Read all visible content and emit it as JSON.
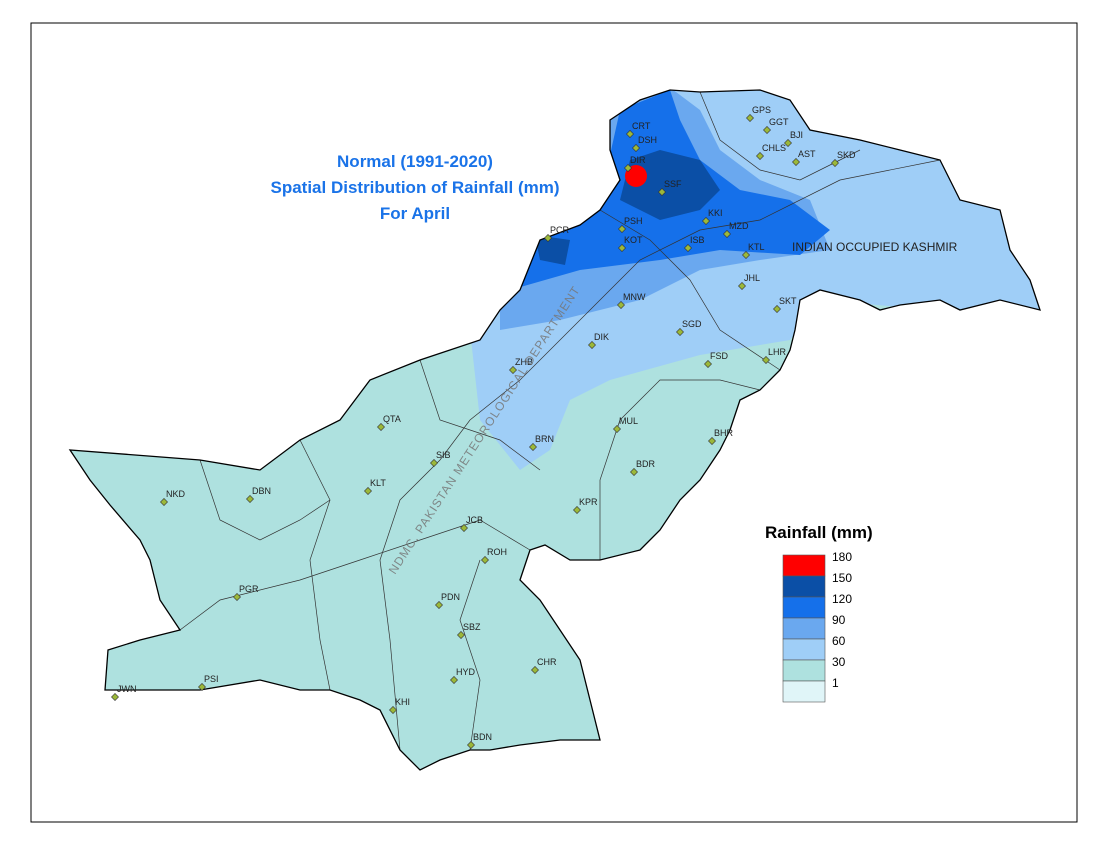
{
  "title": [
    "Normal (1991-2020)",
    "Spatial Distribution of Rainfall (mm)",
    "For April"
  ],
  "region_label": "INDIAN OCCUPIED KASHMIR",
  "watermark": "NDMC, PAKISTAN METEOROLOGICAL DEPARTMENT",
  "legend": {
    "title": "Rainfall (mm)",
    "breaks": [
      180,
      150,
      120,
      90,
      60,
      30,
      1
    ],
    "colors": [
      "#ff0000",
      "#0b4fa6",
      "#1570ea",
      "#6aa8ef",
      "#9fcef7",
      "#aee1df",
      "#e0f5f8"
    ]
  },
  "stations": [
    "GPS",
    "GGT",
    "BJI",
    "CHLS",
    "AST",
    "SKD",
    "CRT",
    "DSH",
    "DIR",
    "SSF",
    "PCR",
    "PSH",
    "KOT",
    "KKI",
    "MZD",
    "ISB",
    "KTL",
    "JHL",
    "SKT",
    "MNW",
    "SGD",
    "DIK",
    "FSD",
    "LHR",
    "ZHB",
    "QTA",
    "MUL",
    "BRN",
    "BHR",
    "SIB",
    "BDR",
    "KLT",
    "NKD",
    "DBN",
    "KPR",
    "JCB",
    "ROH",
    "PDN",
    "PGR",
    "SBZ",
    "CHR",
    "HYD",
    "JWN",
    "PSI",
    "KHI",
    "BDN"
  ]
}
